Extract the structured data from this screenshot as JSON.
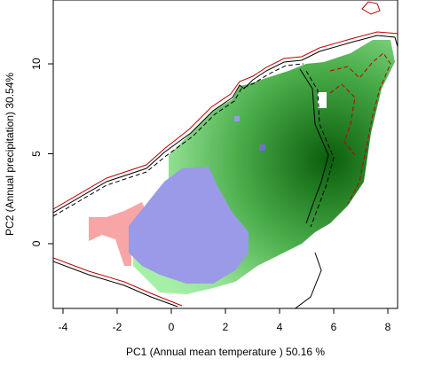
{
  "chart_data": {
    "type": "niche",
    "x_label": "PC1 (Annual mean temperature ) 50.16 %",
    "y_label": "PC2 (Annual precipitation) 30.54%",
    "xlim": [
      -4.36,
      8.36
    ],
    "ylim": [
      -3.6,
      13.55
    ],
    "xticks": [
      -4,
      -2,
      0,
      2,
      4,
      6,
      8
    ],
    "yticks": [
      0,
      5,
      10
    ]
  }
}
